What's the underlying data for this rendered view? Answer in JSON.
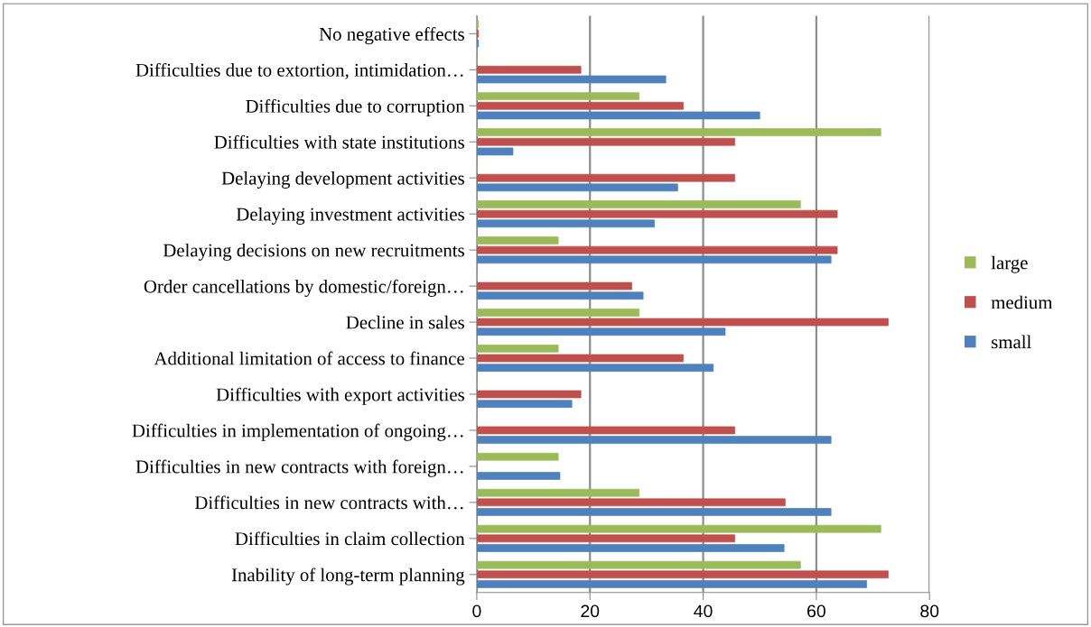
{
  "chart_data": {
    "type": "bar",
    "orientation": "horizontal",
    "categories": [
      "No negative effects",
      "Difficulties due to extortion, intimidation…",
      "Difficulties due to corruption",
      "Difficulties with state institutions",
      "Delaying development activities",
      "Delaying investment activities",
      "Delaying decisions on new recruitments",
      "Order cancellations by domestic/foreign…",
      "Decline in sales",
      "Additional limitation of access to finance",
      "Difficulties with export activities",
      "Difficulties in implementation of ongoing…",
      "Difficulties in new contracts with foreign…",
      "Difficulties in new contracts with…",
      "Difficulties in claim collection",
      "Inability of long-term planning"
    ],
    "series": [
      {
        "name": "large",
        "color": "#9bbb59",
        "values": [
          0.3,
          0,
          28.7,
          71.4,
          0,
          57.2,
          14.4,
          0,
          28.7,
          14.4,
          0,
          0,
          14.4,
          28.7,
          71.4,
          57.2
        ]
      },
      {
        "name": "medium",
        "color": "#c0504d",
        "values": [
          0.3,
          18.4,
          36.5,
          45.6,
          45.6,
          63.7,
          63.7,
          27.4,
          72.7,
          36.5,
          18.4,
          45.6,
          0,
          54.5,
          45.6,
          72.7
        ]
      },
      {
        "name": "small",
        "color": "#4f81bd",
        "values": [
          0.3,
          33.4,
          50,
          6.4,
          35.5,
          31.4,
          62.6,
          29.4,
          43.9,
          41.8,
          16.8,
          62.6,
          14.7,
          62.6,
          54.3,
          68.9
        ]
      }
    ],
    "xlim": [
      0,
      80
    ],
    "xticks": [
      0,
      20,
      40,
      60,
      80
    ],
    "grid": "x",
    "legend": "right"
  }
}
